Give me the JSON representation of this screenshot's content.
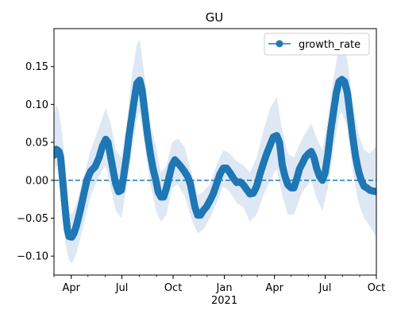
{
  "chart_data": {
    "type": "line",
    "title": "GU",
    "xlabel": "",
    "ylabel": "",
    "x_range": [
      "2020-03-01",
      "2021-10-01"
    ],
    "ylim": [
      -0.125,
      0.2
    ],
    "y_ticks": [
      -0.1,
      -0.05,
      0.0,
      0.05,
      0.1,
      0.15
    ],
    "y_tick_labels": [
      "−0.10",
      "−0.05",
      "0.00",
      "0.05",
      "0.10",
      "0.15"
    ],
    "x_ticks": [
      {
        "date": "2020-04-01",
        "label": "Apr"
      },
      {
        "date": "2020-07-01",
        "label": "Jul"
      },
      {
        "date": "2020-10-01",
        "label": "Oct"
      },
      {
        "date": "2021-01-01",
        "label": "Jan"
      },
      {
        "date": "2021-04-01",
        "label": "Apr"
      },
      {
        "date": "2021-07-01",
        "label": "Jul"
      },
      {
        "date": "2021-10-01",
        "label": "Oct"
      }
    ],
    "year_label": {
      "date": "2021-01-01",
      "label": "2021"
    },
    "legend": {
      "position": "top-right",
      "entries": [
        "growth_rate"
      ]
    },
    "grid": false,
    "reference_line": {
      "y": 0,
      "style": "dashed"
    },
    "colors": {
      "series": "#1f77b4",
      "band": "#dde8f4"
    },
    "series": [
      {
        "name": "growth_rate",
        "points": [
          [
            "2020-03-01",
            0.033
          ],
          [
            "2020-03-05",
            0.041
          ],
          [
            "2020-03-10",
            0.038
          ],
          [
            "2020-03-13",
            0.03
          ],
          [
            "2020-03-16",
            0.005
          ],
          [
            "2020-03-19",
            -0.02
          ],
          [
            "2020-03-22",
            -0.045
          ],
          [
            "2020-03-25",
            -0.065
          ],
          [
            "2020-03-28",
            -0.074
          ],
          [
            "2020-04-02",
            -0.075
          ],
          [
            "2020-04-06",
            -0.07
          ],
          [
            "2020-04-11",
            -0.058
          ],
          [
            "2020-04-17",
            -0.04
          ],
          [
            "2020-04-23",
            -0.02
          ],
          [
            "2020-04-29",
            0.0
          ],
          [
            "2020-05-06",
            0.012
          ],
          [
            "2020-05-14",
            0.018
          ],
          [
            "2020-05-21",
            0.03
          ],
          [
            "2020-05-27",
            0.045
          ],
          [
            "2020-06-02",
            0.054
          ],
          [
            "2020-06-06",
            0.05
          ],
          [
            "2020-06-11",
            0.03
          ],
          [
            "2020-06-16",
            0.01
          ],
          [
            "2020-06-20",
            -0.005
          ],
          [
            "2020-06-25",
            -0.015
          ],
          [
            "2020-06-30",
            -0.013
          ],
          [
            "2020-07-04",
            0.005
          ],
          [
            "2020-07-09",
            0.03
          ],
          [
            "2020-07-14",
            0.06
          ],
          [
            "2020-07-19",
            0.085
          ],
          [
            "2020-07-24",
            0.11
          ],
          [
            "2020-07-28",
            0.128
          ],
          [
            "2020-08-02",
            0.132
          ],
          [
            "2020-08-06",
            0.12
          ],
          [
            "2020-08-11",
            0.09
          ],
          [
            "2020-08-16",
            0.06
          ],
          [
            "2020-08-21",
            0.035
          ],
          [
            "2020-08-26",
            0.015
          ],
          [
            "2020-08-31",
            0.0
          ],
          [
            "2020-09-04",
            -0.015
          ],
          [
            "2020-09-09",
            -0.022
          ],
          [
            "2020-09-14",
            -0.022
          ],
          [
            "2020-09-19",
            -0.01
          ],
          [
            "2020-09-24",
            0.005
          ],
          [
            "2020-09-29",
            0.02
          ],
          [
            "2020-10-04",
            0.027
          ],
          [
            "2020-10-09",
            0.023
          ],
          [
            "2020-10-15",
            0.018
          ],
          [
            "2020-10-21",
            0.012
          ],
          [
            "2020-10-27",
            0.005
          ],
          [
            "2020-11-01",
            -0.005
          ],
          [
            "2020-11-05",
            -0.02
          ],
          [
            "2020-11-09",
            -0.035
          ],
          [
            "2020-11-14",
            -0.046
          ],
          [
            "2020-11-19",
            -0.046
          ],
          [
            "2020-11-24",
            -0.04
          ],
          [
            "2020-11-30",
            -0.035
          ],
          [
            "2020-12-06",
            -0.027
          ],
          [
            "2020-12-12",
            -0.018
          ],
          [
            "2020-12-18",
            -0.005
          ],
          [
            "2020-12-24",
            0.008
          ],
          [
            "2020-12-30",
            0.016
          ],
          [
            "2021-01-05",
            0.016
          ],
          [
            "2021-01-11",
            0.01
          ],
          [
            "2021-01-17",
            0.003
          ],
          [
            "2021-01-23",
            -0.003
          ],
          [
            "2021-01-29",
            -0.002
          ],
          [
            "2021-02-04",
            -0.006
          ],
          [
            "2021-02-10",
            -0.012
          ],
          [
            "2021-02-16",
            -0.018
          ],
          [
            "2021-02-22",
            -0.017
          ],
          [
            "2021-02-28",
            -0.008
          ],
          [
            "2021-03-06",
            0.008
          ],
          [
            "2021-03-12",
            0.022
          ],
          [
            "2021-03-18",
            0.035
          ],
          [
            "2021-03-24",
            0.046
          ],
          [
            "2021-03-30",
            0.057
          ],
          [
            "2021-04-05",
            0.059
          ],
          [
            "2021-04-10",
            0.05
          ],
          [
            "2021-04-15",
            0.02
          ],
          [
            "2021-04-20",
            0.005
          ],
          [
            "2021-04-25",
            -0.006
          ],
          [
            "2021-05-01",
            -0.01
          ],
          [
            "2021-05-06",
            -0.01
          ],
          [
            "2021-05-11",
            0.002
          ],
          [
            "2021-05-16",
            0.015
          ],
          [
            "2021-05-21",
            0.022
          ],
          [
            "2021-05-26",
            0.03
          ],
          [
            "2021-06-01",
            0.035
          ],
          [
            "2021-06-06",
            0.038
          ],
          [
            "2021-06-11",
            0.03
          ],
          [
            "2021-06-16",
            0.015
          ],
          [
            "2021-06-21",
            0.005
          ],
          [
            "2021-06-26",
            0.0
          ],
          [
            "2021-07-01",
            0.01
          ],
          [
            "2021-07-06",
            0.035
          ],
          [
            "2021-07-11",
            0.065
          ],
          [
            "2021-07-16",
            0.09
          ],
          [
            "2021-07-21",
            0.115
          ],
          [
            "2021-07-26",
            0.13
          ],
          [
            "2021-07-31",
            0.133
          ],
          [
            "2021-08-05",
            0.13
          ],
          [
            "2021-08-10",
            0.115
          ],
          [
            "2021-08-15",
            0.085
          ],
          [
            "2021-08-20",
            0.055
          ],
          [
            "2021-08-25",
            0.03
          ],
          [
            "2021-08-30",
            0.012
          ],
          [
            "2021-09-04",
            0.0
          ],
          [
            "2021-09-09",
            -0.008
          ],
          [
            "2021-09-14",
            -0.01
          ],
          [
            "2021-09-19",
            -0.013
          ],
          [
            "2021-09-24",
            -0.014
          ],
          [
            "2021-10-01",
            -0.015
          ]
        ],
        "band": [
          [
            "2020-03-01",
            0.01,
            0.085
          ],
          [
            "2020-03-05",
            0.02,
            0.1
          ],
          [
            "2020-03-10",
            0.0,
            0.09
          ],
          [
            "2020-03-16",
            -0.04,
            0.06
          ],
          [
            "2020-03-22",
            -0.085,
            0.01
          ],
          [
            "2020-03-28",
            -0.105,
            -0.04
          ],
          [
            "2020-04-02",
            -0.11,
            -0.045
          ],
          [
            "2020-04-11",
            -0.095,
            -0.03
          ],
          [
            "2020-04-23",
            -0.06,
            0.005
          ],
          [
            "2020-05-06",
            -0.02,
            0.04
          ],
          [
            "2020-05-21",
            0.005,
            0.07
          ],
          [
            "2020-06-02",
            0.02,
            0.095
          ],
          [
            "2020-06-11",
            -0.01,
            0.075
          ],
          [
            "2020-06-20",
            -0.04,
            0.04
          ],
          [
            "2020-06-30",
            -0.05,
            0.03
          ],
          [
            "2020-07-09",
            -0.01,
            0.07
          ],
          [
            "2020-07-19",
            0.04,
            0.14
          ],
          [
            "2020-07-28",
            0.08,
            0.18
          ],
          [
            "2020-08-02",
            0.09,
            0.185
          ],
          [
            "2020-08-11",
            0.045,
            0.135
          ],
          [
            "2020-08-21",
            -0.005,
            0.075
          ],
          [
            "2020-08-31",
            -0.04,
            0.045
          ],
          [
            "2020-09-09",
            -0.055,
            0.01
          ],
          [
            "2020-09-19",
            -0.045,
            0.02
          ],
          [
            "2020-09-29",
            -0.01,
            0.05
          ],
          [
            "2020-10-09",
            -0.005,
            0.055
          ],
          [
            "2020-10-21",
            -0.02,
            0.045
          ],
          [
            "2020-11-05",
            -0.055,
            0.005
          ],
          [
            "2020-11-14",
            -0.07,
            -0.02
          ],
          [
            "2020-11-24",
            -0.065,
            -0.015
          ],
          [
            "2020-12-06",
            -0.05,
            -0.005
          ],
          [
            "2020-12-18",
            -0.03,
            0.02
          ],
          [
            "2020-12-30",
            -0.008,
            0.04
          ],
          [
            "2021-01-11",
            -0.015,
            0.035
          ],
          [
            "2021-01-23",
            -0.03,
            0.025
          ],
          [
            "2021-02-04",
            -0.035,
            0.02
          ],
          [
            "2021-02-16",
            -0.055,
            0.01
          ],
          [
            "2021-02-28",
            -0.045,
            0.03
          ],
          [
            "2021-03-12",
            -0.02,
            0.065
          ],
          [
            "2021-03-24",
            0.0,
            0.095
          ],
          [
            "2021-04-05",
            0.015,
            0.11
          ],
          [
            "2021-04-15",
            -0.02,
            0.065
          ],
          [
            "2021-04-25",
            -0.045,
            0.035
          ],
          [
            "2021-05-06",
            -0.045,
            0.03
          ],
          [
            "2021-05-21",
            -0.015,
            0.055
          ],
          [
            "2021-06-06",
            0.0,
            0.075
          ],
          [
            "2021-06-16",
            -0.025,
            0.055
          ],
          [
            "2021-06-26",
            -0.04,
            0.04
          ],
          [
            "2021-07-06",
            -0.01,
            0.08
          ],
          [
            "2021-07-16",
            0.04,
            0.135
          ],
          [
            "2021-07-26",
            0.085,
            0.175
          ],
          [
            "2021-07-31",
            0.09,
            0.18
          ],
          [
            "2021-08-10",
            0.07,
            0.16
          ],
          [
            "2021-08-20",
            0.01,
            0.1
          ],
          [
            "2021-08-30",
            -0.03,
            0.06
          ],
          [
            "2021-09-09",
            -0.05,
            0.04
          ],
          [
            "2021-09-19",
            -0.06,
            0.035
          ],
          [
            "2021-10-01",
            -0.075,
            0.045
          ]
        ]
      }
    ]
  }
}
